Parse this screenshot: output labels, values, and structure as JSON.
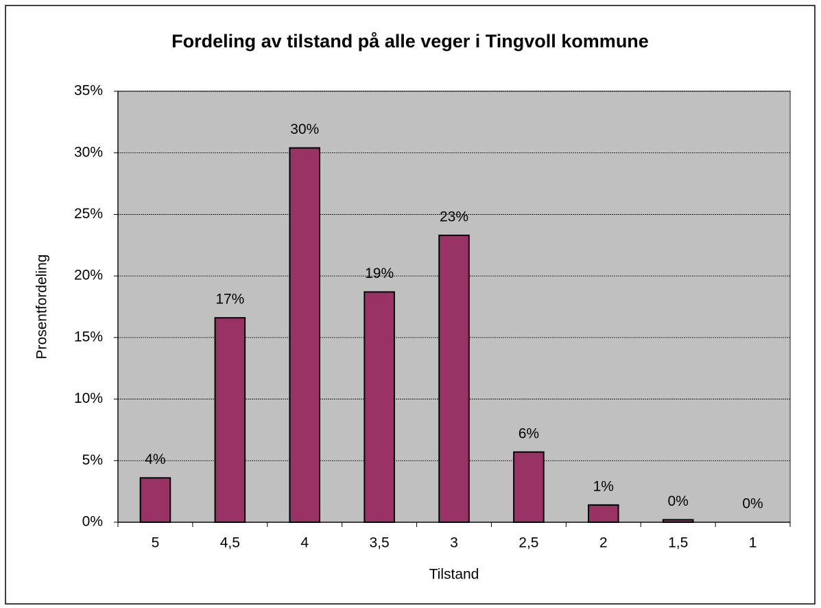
{
  "chart_data": {
    "type": "bar",
    "title": "Fordeling av tilstand på alle veger i Tingvoll kommune",
    "xlabel": "Tilstand",
    "ylabel": "Prosentfordeling",
    "categories": [
      "5",
      "4,5",
      "4",
      "3,5",
      "3",
      "2,5",
      "2",
      "1,5",
      "1"
    ],
    "values": [
      3.6,
      16.6,
      30.4,
      18.7,
      23.3,
      5.7,
      1.4,
      0.2,
      0
    ],
    "value_labels": [
      "4%",
      "17%",
      "30%",
      "19%",
      "23%",
      "6%",
      "1%",
      "0%",
      "0%"
    ],
    "color": "#993366",
    "ylim": [
      0,
      35
    ],
    "yticks": [
      {
        "value": 0,
        "label": "0%"
      },
      {
        "value": 5,
        "label": "5%"
      },
      {
        "value": 10,
        "label": "10%"
      },
      {
        "value": 15,
        "label": "15%"
      },
      {
        "value": 20,
        "label": "20%"
      },
      {
        "value": 25,
        "label": "25%"
      },
      {
        "value": 30,
        "label": "30%"
      },
      {
        "value": 35,
        "label": "35%"
      }
    ],
    "grid": true
  }
}
